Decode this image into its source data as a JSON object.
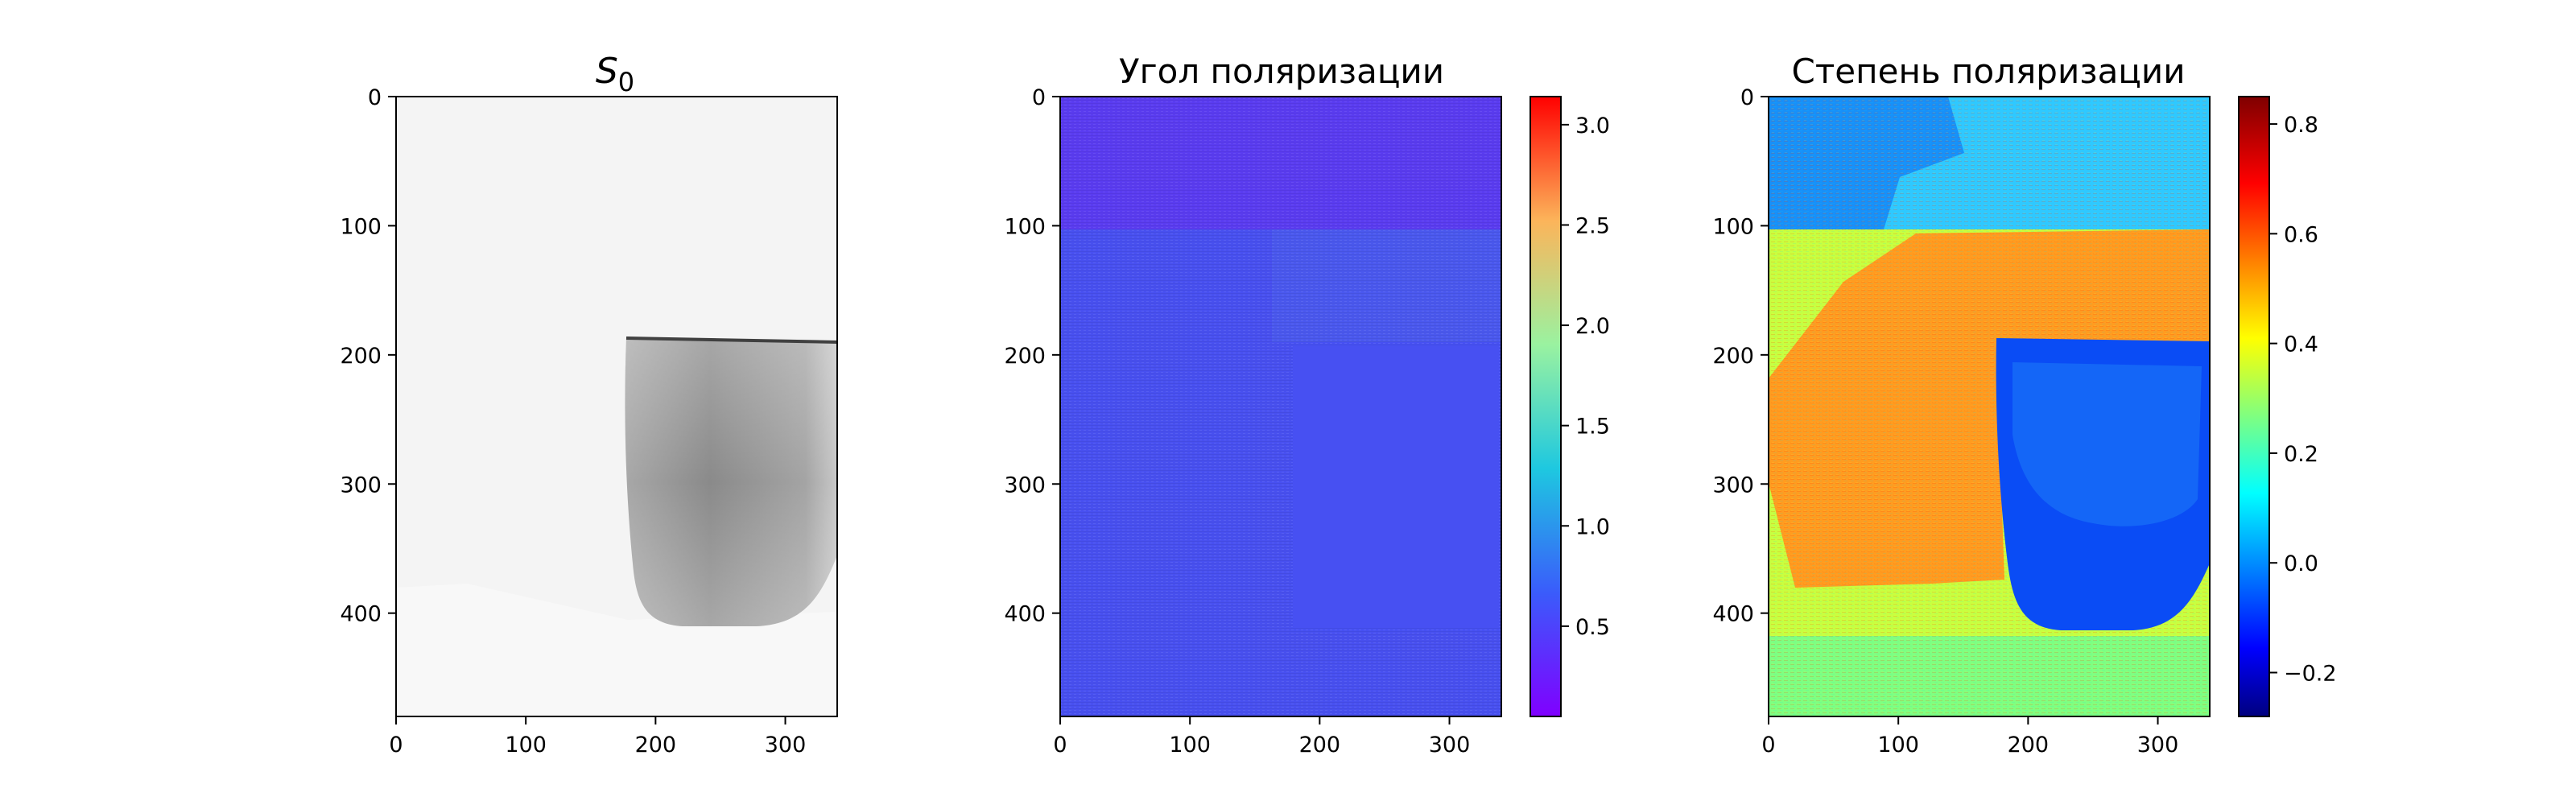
{
  "figure": {
    "background": "#ffffff"
  },
  "chart_data": [
    {
      "type": "heatmap",
      "title": "S_0",
      "title_parts": {
        "base": "S",
        "sub": "0"
      },
      "colormap": "gray",
      "xlim": [
        0,
        340
      ],
      "ylim": [
        480,
        0
      ],
      "xticks": [
        0,
        100,
        200,
        300
      ],
      "yticks": [
        0,
        100,
        200,
        300,
        400
      ],
      "grid": false,
      "colorbar": null,
      "image_features": {
        "background_level": "near white",
        "cup_region": {
          "x_range": [
            175,
            340
          ],
          "y_range": [
            185,
            410
          ],
          "level": "mid gray"
        }
      }
    },
    {
      "type": "heatmap",
      "title": "Угол поляризации",
      "colormap": "rainbow",
      "xlim": [
        0,
        340
      ],
      "ylim": [
        480,
        0
      ],
      "xticks": [
        0,
        100,
        200,
        300
      ],
      "yticks": [
        0,
        100,
        200,
        300,
        400
      ],
      "grid": false,
      "colorbar": {
        "range": [
          0.05,
          3.14
        ],
        "ticks": [
          0.5,
          1.0,
          1.5,
          2.0,
          2.5,
          3.0
        ],
        "tick_labels": [
          "0.5",
          "1.0",
          "1.5",
          "2.0",
          "2.5",
          "3.0"
        ]
      },
      "image_features": {
        "typical_value": 0.45,
        "top_band_value": 0.35,
        "cup_region_value": 0.4
      }
    },
    {
      "type": "heatmap",
      "title": "Степень поляризации",
      "colormap": "jet",
      "xlim": [
        0,
        340
      ],
      "ylim": [
        480,
        0
      ],
      "xticks": [
        0,
        100,
        200,
        300
      ],
      "yticks": [
        0,
        100,
        200,
        300,
        400
      ],
      "grid": false,
      "colorbar": {
        "range": [
          -0.28,
          0.85
        ],
        "ticks": [
          -0.2,
          0.0,
          0.2,
          0.4,
          0.6,
          0.8
        ],
        "tick_labels": [
          "−0.2",
          "0.0",
          "0.2",
          "0.4",
          "0.6",
          "0.8"
        ]
      },
      "image_features": {
        "top_band_value": 0.15,
        "middle_background_value": 0.45,
        "left_bright_region_value": 0.62,
        "cup_region_value": -0.05,
        "bottom_band_value": 0.35
      }
    }
  ]
}
